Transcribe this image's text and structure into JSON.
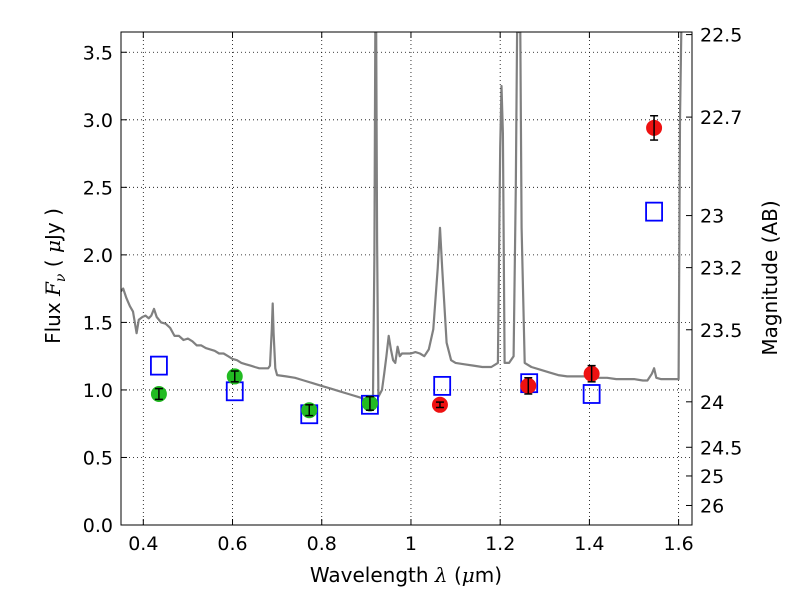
{
  "chart_data": {
    "type": "scatter",
    "xlabel_prefix": "Wavelength",
    "xlabel_symbol": "λ",
    "xlabel_unit_open": "(",
    "xlabel_unit_mu": "μ",
    "xlabel_unit_rest": "m)",
    "ylabel_prefix": "Flux",
    "ylabel_symbol": "F",
    "ylabel_sub": "ν",
    "ylabel_unit_open": "(",
    "ylabel_unit_mu": "μ",
    "ylabel_unit_rest": "Jy )",
    "y2label": "Magnitude (AB)",
    "xlim": [
      0.35,
      1.63
    ],
    "ylim": [
      0.0,
      3.65
    ],
    "grid": true,
    "x_ticks": [
      {
        "value": 0.4,
        "label": "0.4"
      },
      {
        "value": 0.6,
        "label": "0.6"
      },
      {
        "value": 0.8,
        "label": "0.8"
      },
      {
        "value": 1.0,
        "label": "1"
      },
      {
        "value": 1.2,
        "label": "1.2"
      },
      {
        "value": 1.4,
        "label": "1.4"
      },
      {
        "value": 1.6,
        "label": "1.6"
      }
    ],
    "y_ticks": [
      {
        "value": 0.0,
        "label": "0.0"
      },
      {
        "value": 0.5,
        "label": "0.5"
      },
      {
        "value": 1.0,
        "label": "1.0"
      },
      {
        "value": 1.5,
        "label": "1.5"
      },
      {
        "value": 2.0,
        "label": "2.0"
      },
      {
        "value": 2.5,
        "label": "2.5"
      },
      {
        "value": 3.0,
        "label": "3.0"
      },
      {
        "value": 3.5,
        "label": "3.5"
      }
    ],
    "y2_ticks": [
      {
        "mag": 22.5,
        "label": "22.5"
      },
      {
        "mag": 22.7,
        "label": "22.7"
      },
      {
        "mag": 23.0,
        "label": "23"
      },
      {
        "mag": 23.2,
        "label": "23.2"
      },
      {
        "mag": 23.5,
        "label": "23.5"
      },
      {
        "mag": 24.0,
        "label": "24"
      },
      {
        "mag": 24.5,
        "label": "24.5"
      },
      {
        "mag": 25.0,
        "label": "25"
      },
      {
        "mag": 26.0,
        "label": "26"
      }
    ],
    "series": [
      {
        "kind": "line",
        "color": "#808080",
        "points": [
          [
            0.35,
            1.73
          ],
          [
            0.355,
            1.75
          ],
          [
            0.362,
            1.68
          ],
          [
            0.37,
            1.62
          ],
          [
            0.377,
            1.58
          ],
          [
            0.385,
            1.42
          ],
          [
            0.39,
            1.52
          ],
          [
            0.398,
            1.54
          ],
          [
            0.405,
            1.55
          ],
          [
            0.412,
            1.53
          ],
          [
            0.418,
            1.55
          ],
          [
            0.424,
            1.6
          ],
          [
            0.43,
            1.54
          ],
          [
            0.44,
            1.5
          ],
          [
            0.45,
            1.49
          ],
          [
            0.46,
            1.46
          ],
          [
            0.47,
            1.4
          ],
          [
            0.48,
            1.4
          ],
          [
            0.49,
            1.37
          ],
          [
            0.5,
            1.38
          ],
          [
            0.51,
            1.36
          ],
          [
            0.52,
            1.33
          ],
          [
            0.53,
            1.33
          ],
          [
            0.54,
            1.31
          ],
          [
            0.55,
            1.3
          ],
          [
            0.56,
            1.29
          ],
          [
            0.57,
            1.27
          ],
          [
            0.58,
            1.27
          ],
          [
            0.59,
            1.25
          ],
          [
            0.6,
            1.23
          ],
          [
            0.61,
            1.22
          ],
          [
            0.62,
            1.2
          ],
          [
            0.63,
            1.19
          ],
          [
            0.64,
            1.18
          ],
          [
            0.65,
            1.17
          ],
          [
            0.66,
            1.16
          ],
          [
            0.67,
            1.16
          ],
          [
            0.68,
            1.16
          ],
          [
            0.684,
            1.18
          ],
          [
            0.688,
            1.45
          ],
          [
            0.69,
            1.64
          ],
          [
            0.692,
            1.42
          ],
          [
            0.696,
            1.16
          ],
          [
            0.7,
            1.11
          ],
          [
            0.72,
            1.1
          ],
          [
            0.74,
            1.09
          ],
          [
            0.76,
            1.07
          ],
          [
            0.78,
            1.05
          ],
          [
            0.8,
            1.03
          ],
          [
            0.82,
            1.01
          ],
          [
            0.84,
            0.99
          ],
          [
            0.86,
            0.97
          ],
          [
            0.88,
            0.95
          ],
          [
            0.9,
            0.93
          ],
          [
            0.91,
            0.92
          ],
          [
            0.915,
            0.95
          ],
          [
            0.918,
            2.0
          ],
          [
            0.92,
            3.65
          ],
          [
            0.922,
            3.65
          ],
          [
            0.924,
            2.1
          ],
          [
            0.927,
            0.95
          ],
          [
            0.935,
            1.0
          ],
          [
            0.94,
            1.12
          ],
          [
            0.945,
            1.25
          ],
          [
            0.95,
            1.4
          ],
          [
            0.955,
            1.3
          ],
          [
            0.96,
            1.22
          ],
          [
            0.965,
            1.2
          ],
          [
            0.97,
            1.32
          ],
          [
            0.975,
            1.25
          ],
          [
            0.98,
            1.27
          ],
          [
            0.99,
            1.27
          ],
          [
            1.0,
            1.27
          ],
          [
            1.01,
            1.28
          ],
          [
            1.02,
            1.27
          ],
          [
            1.03,
            1.25
          ],
          [
            1.04,
            1.3
          ],
          [
            1.05,
            1.45
          ],
          [
            1.06,
            1.9
          ],
          [
            1.065,
            2.2
          ],
          [
            1.07,
            1.9
          ],
          [
            1.08,
            1.35
          ],
          [
            1.09,
            1.22
          ],
          [
            1.1,
            1.2
          ],
          [
            1.12,
            1.19
          ],
          [
            1.14,
            1.18
          ],
          [
            1.16,
            1.17
          ],
          [
            1.18,
            1.17
          ],
          [
            1.195,
            1.2
          ],
          [
            1.2,
            2.8
          ],
          [
            1.203,
            3.25
          ],
          [
            1.206,
            2.9
          ],
          [
            1.21,
            1.2
          ],
          [
            1.22,
            1.2
          ],
          [
            1.23,
            1.25
          ],
          [
            1.235,
            2.5
          ],
          [
            1.238,
            3.65
          ],
          [
            1.245,
            3.65
          ],
          [
            1.248,
            2.2
          ],
          [
            1.255,
            1.2
          ],
          [
            1.27,
            1.17
          ],
          [
            1.29,
            1.15
          ],
          [
            1.31,
            1.13
          ],
          [
            1.33,
            1.11
          ],
          [
            1.35,
            1.1
          ],
          [
            1.37,
            1.1
          ],
          [
            1.4,
            1.1
          ],
          [
            1.42,
            1.09
          ],
          [
            1.44,
            1.09
          ],
          [
            1.46,
            1.08
          ],
          [
            1.48,
            1.08
          ],
          [
            1.5,
            1.08
          ],
          [
            1.52,
            1.07
          ],
          [
            1.53,
            1.07
          ],
          [
            1.54,
            1.12
          ],
          [
            1.545,
            1.16
          ],
          [
            1.55,
            1.09
          ],
          [
            1.56,
            1.08
          ],
          [
            1.58,
            1.08
          ],
          [
            1.6,
            1.08
          ],
          [
            1.603,
            3.0
          ],
          [
            1.606,
            3.65
          ]
        ]
      },
      {
        "kind": "squares",
        "color": "#0000ff",
        "points": [
          [
            0.435,
            1.18
          ],
          [
            0.605,
            0.99
          ],
          [
            0.772,
            0.82
          ],
          [
            0.908,
            0.89
          ],
          [
            1.07,
            1.03
          ],
          [
            1.265,
            1.05
          ],
          [
            1.405,
            0.97
          ],
          [
            1.545,
            2.32
          ]
        ]
      },
      {
        "kind": "circles",
        "color": "#22bb22",
        "points": [
          [
            0.435,
            0.97,
            0.04
          ],
          [
            0.605,
            1.1,
            0.04
          ],
          [
            0.772,
            0.85,
            0.04
          ],
          [
            0.908,
            0.9,
            0.05
          ]
        ]
      },
      {
        "kind": "circles",
        "color": "#ee1111",
        "points": [
          [
            1.065,
            0.89,
            0.02
          ],
          [
            1.263,
            1.03,
            0.06
          ],
          [
            1.405,
            1.12,
            0.06
          ],
          [
            1.545,
            2.94,
            0.09
          ]
        ]
      }
    ]
  }
}
